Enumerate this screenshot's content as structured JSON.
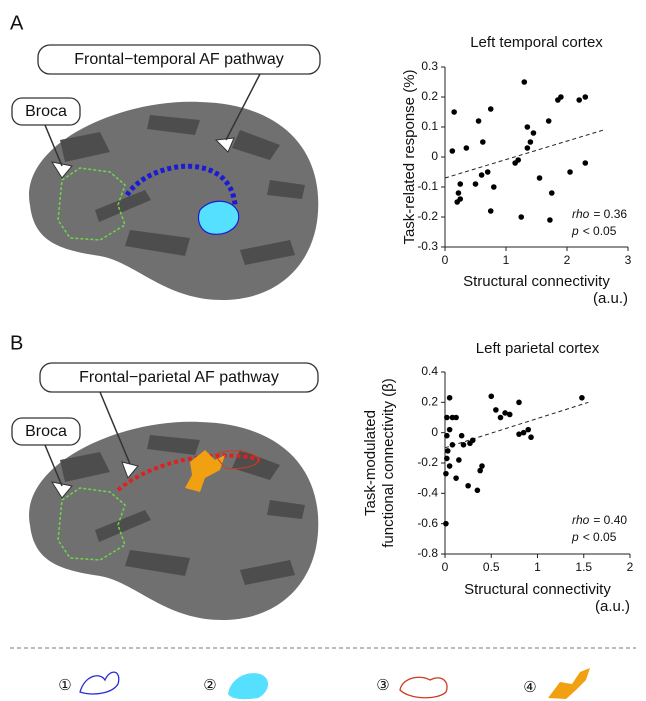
{
  "panels": [
    {
      "label": "A",
      "pathway": "Frontal−temporal AF pathway",
      "region": "Broca"
    },
    {
      "label": "B",
      "pathway": "Frontal−parietal AF pathway",
      "region": "Broca"
    }
  ],
  "legend_numbers": [
    "①",
    "②",
    "③",
    "④"
  ],
  "chart_data": [
    {
      "type": "scatter",
      "title": "Left temporal cortex",
      "xlabel": [
        "Structural connectivity",
        "(a.u.)"
      ],
      "ylabel": [
        "Task-related response (%)"
      ],
      "x": [
        0.15,
        0.12,
        0.35,
        0.55,
        0.75,
        0.62,
        0.25,
        0.22,
        0.25,
        0.2,
        0.5,
        0.6,
        0.7,
        0.75,
        0.8,
        1.2,
        1.15,
        1.25,
        1.3,
        1.35,
        1.4,
        1.35,
        1.45,
        1.55,
        1.7,
        1.72,
        1.75,
        1.85,
        1.9,
        2.05,
        2.2,
        2.3,
        2.3
      ],
      "y": [
        0.15,
        0.02,
        0.03,
        0.12,
        0.16,
        0.05,
        -0.09,
        -0.12,
        -0.14,
        -0.15,
        -0.09,
        -0.06,
        -0.05,
        -0.18,
        -0.1,
        -0.01,
        -0.02,
        -0.2,
        0.25,
        0.1,
        0.05,
        0.03,
        0.08,
        -0.07,
        0.12,
        -0.21,
        -0.12,
        0.19,
        0.2,
        -0.05,
        0.19,
        0.2,
        -0.02
      ],
      "fit": {
        "x": [
          0,
          2.6
        ],
        "y": [
          -0.07,
          0.09
        ]
      },
      "annotations": [
        {
          "symbol": "rho",
          "text": "= 0.36"
        },
        {
          "symbol": "p",
          "text": "< 0.05"
        }
      ],
      "xlim": [
        0,
        3
      ],
      "xticks": [
        0,
        1,
        2,
        3
      ],
      "ylim": [
        -0.3,
        0.3
      ],
      "yticks": [
        -0.3,
        -0.2,
        -0.1,
        0,
        0.1,
        0.2,
        0.3
      ],
      "color": "#000000"
    },
    {
      "type": "scatter",
      "title": "Left parietal cortex",
      "xlabel": [
        "Structural connectivity",
        "(a.u.)"
      ],
      "ylabel": [
        "Task-modulated",
        "functional connectivity (β)"
      ],
      "x": [
        0.05,
        0.08,
        0.12,
        0.02,
        0.05,
        0.02,
        0.08,
        0.03,
        0.02,
        0.05,
        0.01,
        0.15,
        0.18,
        0.2,
        0.25,
        0.27,
        0.3,
        0.35,
        0.38,
        0.4,
        0.5,
        0.55,
        0.6,
        0.65,
        0.7,
        0.8,
        0.85,
        0.9,
        0.93,
        0.8,
        1.48,
        0.01,
        0.12
      ],
      "y": [
        0.23,
        0.1,
        0.1,
        0.1,
        0.02,
        -0.02,
        -0.08,
        -0.12,
        -0.17,
        -0.22,
        -0.27,
        -0.18,
        -0.02,
        -0.08,
        -0.35,
        -0.07,
        -0.05,
        -0.38,
        -0.25,
        -0.22,
        0.24,
        0.15,
        0.1,
        0.13,
        0.12,
        -0.01,
        0.0,
        0.02,
        -0.03,
        0.2,
        0.23,
        -0.6,
        -0.3
      ],
      "fit": {
        "x": [
          0,
          1.55
        ],
        "y": [
          -0.1,
          0.2
        ]
      },
      "annotations": [
        {
          "symbol": "rho",
          "text": "= 0.40"
        },
        {
          "symbol": "p",
          "text": "< 0.05"
        }
      ],
      "xlim": [
        0,
        2
      ],
      "xticks": [
        0,
        0.5,
        1,
        1.5,
        2
      ],
      "ylim": [
        -0.8,
        0.4
      ],
      "yticks": [
        -0.8,
        -0.6,
        -0.4,
        -0.2,
        0,
        0.2,
        0.4
      ],
      "color": "#000000"
    }
  ]
}
